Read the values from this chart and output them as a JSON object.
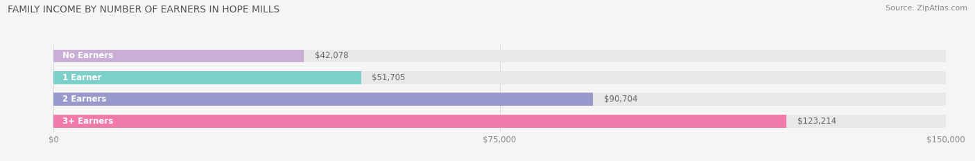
{
  "title": "FAMILY INCOME BY NUMBER OF EARNERS IN HOPE MILLS",
  "source": "Source: ZipAtlas.com",
  "categories": [
    "No Earners",
    "1 Earner",
    "2 Earners",
    "3+ Earners"
  ],
  "values": [
    42078,
    51705,
    90704,
    123214
  ],
  "bar_colors": [
    "#c9aed6",
    "#7dcfca",
    "#9999cc",
    "#f07aaa"
  ],
  "bar_bg_color": "#e8e8e8",
  "background_color": "#f5f5f5",
  "xlim": [
    0,
    150000
  ],
  "xticks": [
    0,
    75000,
    150000
  ],
  "xtick_labels": [
    "$0",
    "$75,000",
    "$150,000"
  ],
  "value_labels": [
    "$42,078",
    "$51,705",
    "$90,704",
    "$123,214"
  ],
  "title_fontsize": 10,
  "source_fontsize": 8,
  "bar_label_fontsize": 8.5,
  "category_fontsize": 8.5,
  "tick_fontsize": 8.5
}
